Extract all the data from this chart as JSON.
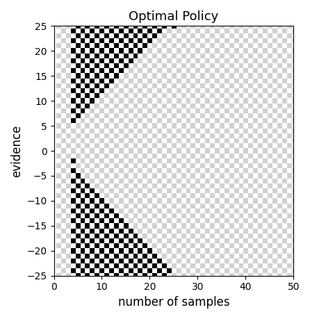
{
  "title": "Optimal Policy",
  "xlabel": "number of samples",
  "ylabel": "evidence",
  "xlim": [
    0,
    50
  ],
  "ylim": [
    -25,
    25
  ],
  "xticks": [
    0,
    10,
    20,
    30,
    40,
    50
  ],
  "yticks": [
    -25,
    -20,
    -15,
    -10,
    -5,
    0,
    5,
    10,
    15,
    20,
    25
  ],
  "n_samples_max": 50,
  "evidence_max": 25,
  "title_fontsize": 13,
  "label_fontsize": 12,
  "tick_fontsize": 10,
  "figsize": [
    4.46,
    4.59
  ],
  "dpi": 100,
  "upper_boundary_points": [
    [
      4,
      5
    ],
    [
      10,
      10
    ],
    [
      15,
      15
    ],
    [
      20,
      21
    ],
    [
      25,
      25
    ]
  ],
  "lower_boundary_points": [
    [
      4,
      -2
    ],
    [
      10,
      -6
    ],
    [
      15,
      -12
    ],
    [
      20,
      -19
    ],
    [
      25,
      -25
    ]
  ],
  "wait_close_n": 26
}
